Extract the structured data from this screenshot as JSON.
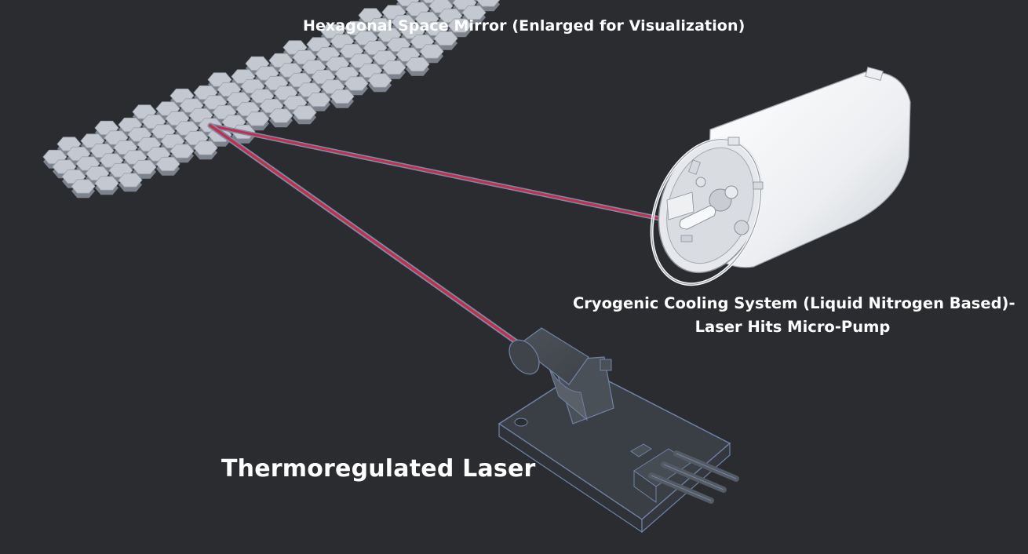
{
  "labels": {
    "mirror": "Hexagonal Space Mirror (Enlarged for Visualization)",
    "cryo_line1": "Cryogenic Cooling System (Liquid Nitrogen Based)-",
    "cryo_line2": "Laser Hits Micro-Pump",
    "laser": "Thermoregulated Laser"
  },
  "colors": {
    "background": "#2b2c30",
    "hex_fill": "#c4c9d1",
    "hex_side": "#7c838d",
    "beam": "#c0304a",
    "beam_edge": "#7f8aa8",
    "cylinder": "#f2f3f5",
    "laser_body": "#555b63",
    "laser_edge": "#6f83a8"
  },
  "icons": [
    "hexagon-mirror",
    "cryogenic-cylinder",
    "laser-module"
  ]
}
